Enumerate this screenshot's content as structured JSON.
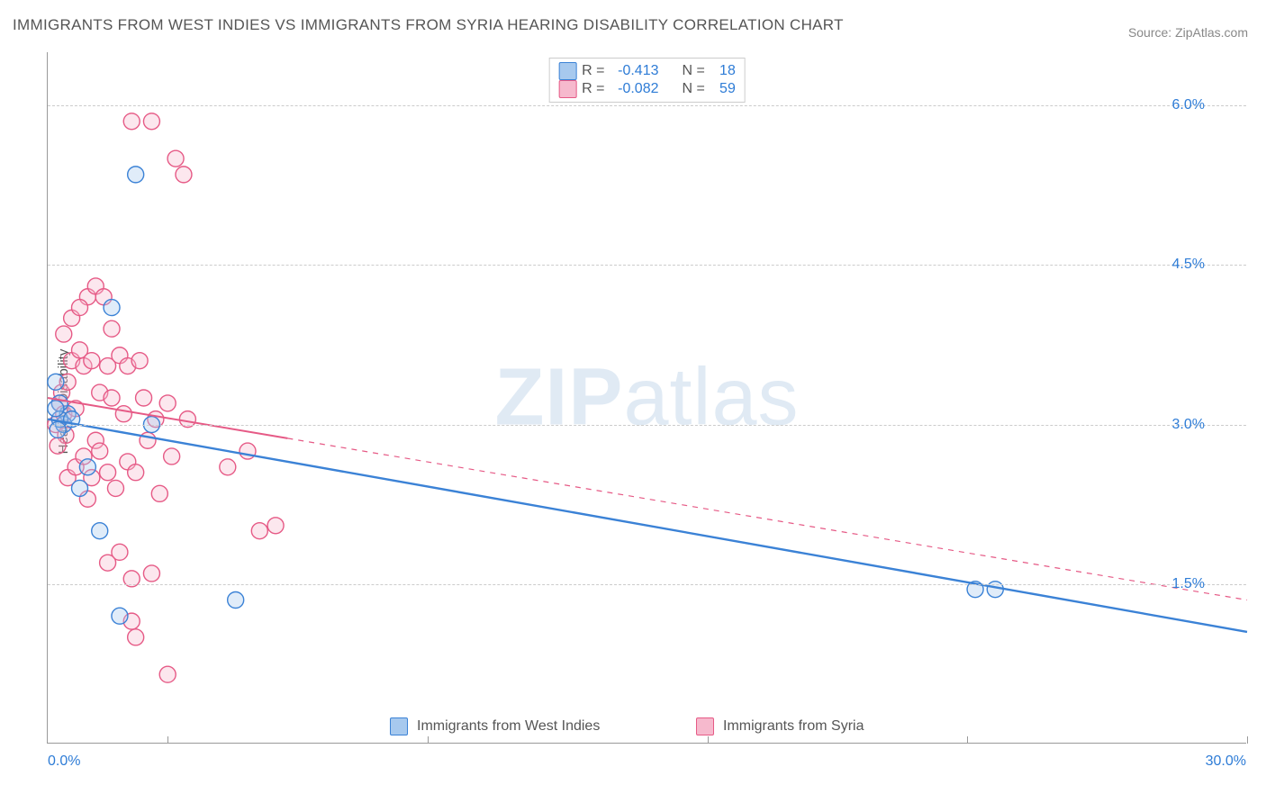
{
  "title": "IMMIGRANTS FROM WEST INDIES VS IMMIGRANTS FROM SYRIA HEARING DISABILITY CORRELATION CHART",
  "source": "Source: ZipAtlas.com",
  "ylabel": "Hearing Disability",
  "watermark_left": "ZIP",
  "watermark_right": "atlas",
  "chart": {
    "type": "scatter+regression",
    "xlim": [
      0,
      30
    ],
    "ylim": [
      0,
      6.5
    ],
    "xlabel_min": "0.0%",
    "xlabel_max": "30.0%",
    "y_ticks": [
      1.5,
      3.0,
      4.5,
      6.0
    ],
    "y_tick_labels": [
      "1.5%",
      "3.0%",
      "4.5%",
      "6.0%"
    ],
    "x_ticks": [
      3,
      9.5,
      16.5,
      23,
      30
    ],
    "grid_color": "#cccccc",
    "background": "#ffffff",
    "marker_radius": 9,
    "marker_fill_opacity": 0.35,
    "marker_stroke_width": 1.4
  },
  "series": [
    {
      "id": "west_indies",
      "label": "Immigrants from West Indies",
      "color_stroke": "#3b82d6",
      "color_fill": "#a7c9ee",
      "R": "-0.413",
      "N": "18",
      "regression": {
        "x1_pct": 0,
        "y1_pct": 3.05,
        "x2_pct": 30,
        "y2_pct": 1.05,
        "solid_until_x": 30,
        "dash_beyond": false,
        "line_width": 2.4
      },
      "points": [
        {
          "x": 0.5,
          "y": 3.1
        },
        {
          "x": 0.4,
          "y": 3.0
        },
        {
          "x": 0.3,
          "y": 3.2
        },
        {
          "x": 0.3,
          "y": 3.05
        },
        {
          "x": 0.25,
          "y": 2.95
        },
        {
          "x": 0.2,
          "y": 3.15
        },
        {
          "x": 1.6,
          "y": 4.1
        },
        {
          "x": 2.2,
          "y": 5.35
        },
        {
          "x": 2.6,
          "y": 3.0
        },
        {
          "x": 1.0,
          "y": 2.6
        },
        {
          "x": 1.3,
          "y": 2.0
        },
        {
          "x": 1.8,
          "y": 1.2
        },
        {
          "x": 4.7,
          "y": 1.35
        },
        {
          "x": 23.2,
          "y": 1.45
        },
        {
          "x": 23.7,
          "y": 1.45
        },
        {
          "x": 0.2,
          "y": 3.4
        },
        {
          "x": 0.8,
          "y": 2.4
        },
        {
          "x": 0.6,
          "y": 3.05
        }
      ]
    },
    {
      "id": "syria",
      "label": "Immigrants from Syria",
      "color_stroke": "#e65a86",
      "color_fill": "#f6b9cd",
      "R": "-0.082",
      "N": "59",
      "regression": {
        "x1_pct": 0,
        "y1_pct": 3.25,
        "x2_pct": 30,
        "y2_pct": 1.35,
        "solid_until_x": 6.0,
        "dash_beyond": true,
        "line_width": 2.0
      },
      "points": [
        {
          "x": 0.2,
          "y": 3.0
        },
        {
          "x": 0.3,
          "y": 3.2
        },
        {
          "x": 0.35,
          "y": 3.3
        },
        {
          "x": 0.4,
          "y": 3.1
        },
        {
          "x": 0.45,
          "y": 2.9
        },
        {
          "x": 0.5,
          "y": 3.4
        },
        {
          "x": 0.6,
          "y": 3.6
        },
        {
          "x": 0.7,
          "y": 3.15
        },
        {
          "x": 0.8,
          "y": 3.7
        },
        {
          "x": 0.9,
          "y": 3.55
        },
        {
          "x": 1.0,
          "y": 4.2
        },
        {
          "x": 1.1,
          "y": 3.6
        },
        {
          "x": 1.2,
          "y": 4.3
        },
        {
          "x": 1.4,
          "y": 4.2
        },
        {
          "x": 1.5,
          "y": 3.55
        },
        {
          "x": 1.6,
          "y": 3.9
        },
        {
          "x": 1.8,
          "y": 3.65
        },
        {
          "x": 2.0,
          "y": 3.55
        },
        {
          "x": 2.3,
          "y": 3.6
        },
        {
          "x": 2.7,
          "y": 3.05
        },
        {
          "x": 3.0,
          "y": 3.2
        },
        {
          "x": 3.2,
          "y": 5.5
        },
        {
          "x": 3.4,
          "y": 5.35
        },
        {
          "x": 2.1,
          "y": 5.85
        },
        {
          "x": 2.6,
          "y": 5.85
        },
        {
          "x": 0.5,
          "y": 2.5
        },
        {
          "x": 0.7,
          "y": 2.6
        },
        {
          "x": 0.9,
          "y": 2.7
        },
        {
          "x": 1.1,
          "y": 2.5
        },
        {
          "x": 1.2,
          "y": 2.85
        },
        {
          "x": 1.0,
          "y": 2.3
        },
        {
          "x": 1.3,
          "y": 2.75
        },
        {
          "x": 1.5,
          "y": 2.55
        },
        {
          "x": 1.7,
          "y": 2.4
        },
        {
          "x": 2.0,
          "y": 2.65
        },
        {
          "x": 2.2,
          "y": 2.55
        },
        {
          "x": 2.5,
          "y": 2.85
        },
        {
          "x": 2.8,
          "y": 2.35
        },
        {
          "x": 3.1,
          "y": 2.7
        },
        {
          "x": 3.5,
          "y": 3.05
        },
        {
          "x": 4.5,
          "y": 2.6
        },
        {
          "x": 5.0,
          "y": 2.75
        },
        {
          "x": 5.3,
          "y": 2.0
        },
        {
          "x": 5.7,
          "y": 2.05
        },
        {
          "x": 1.5,
          "y": 1.7
        },
        {
          "x": 1.8,
          "y": 1.8
        },
        {
          "x": 2.1,
          "y": 1.55
        },
        {
          "x": 2.1,
          "y": 1.15
        },
        {
          "x": 2.2,
          "y": 1.0
        },
        {
          "x": 2.6,
          "y": 1.6
        },
        {
          "x": 3.0,
          "y": 0.65
        },
        {
          "x": 0.4,
          "y": 3.85
        },
        {
          "x": 0.6,
          "y": 4.0
        },
        {
          "x": 0.8,
          "y": 4.1
        },
        {
          "x": 1.3,
          "y": 3.3
        },
        {
          "x": 1.6,
          "y": 3.25
        },
        {
          "x": 1.9,
          "y": 3.1
        },
        {
          "x": 2.4,
          "y": 3.25
        },
        {
          "x": 0.25,
          "y": 2.8
        }
      ]
    }
  ],
  "legend_top_labels": {
    "R_prefix": "R =",
    "N_prefix": "N ="
  },
  "legend_bottom_a": "Immigrants from West Indies",
  "legend_bottom_b": "Immigrants from Syria",
  "value_color": "#2e7cd6",
  "label_color": "#555555"
}
